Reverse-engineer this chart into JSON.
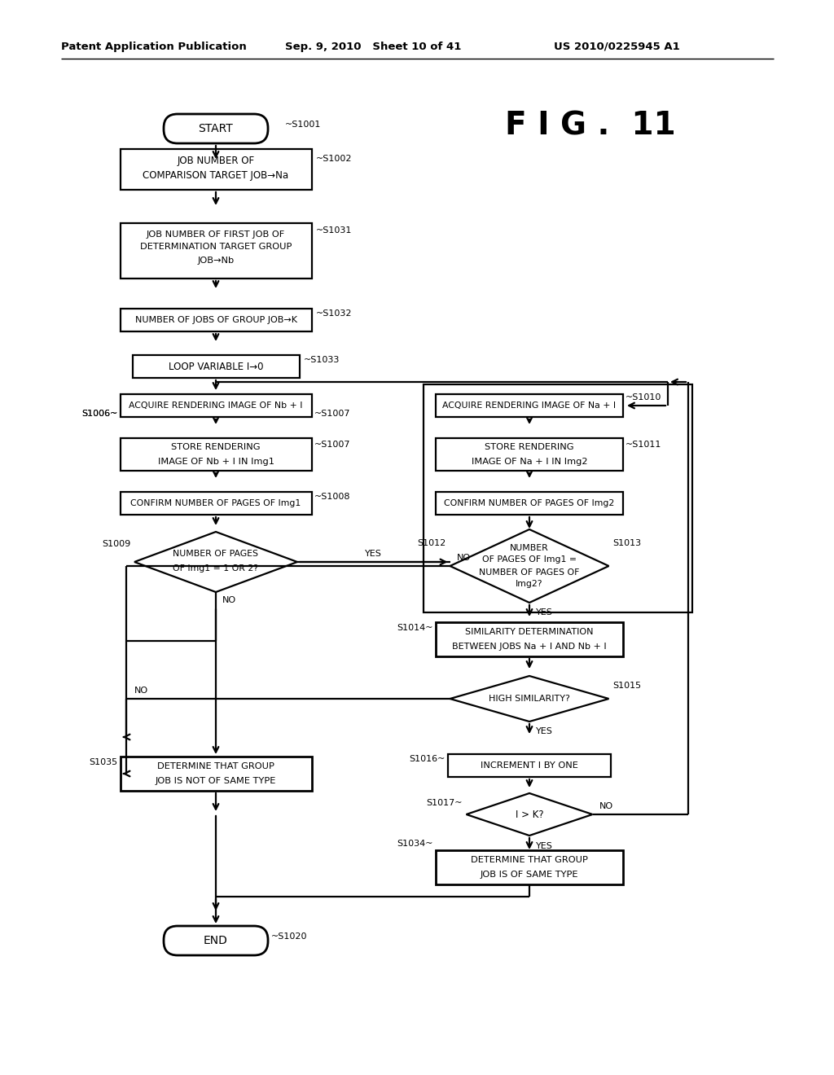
{
  "header_left": "Patent Application Publication",
  "header_mid": "Sep. 9, 2010   Sheet 10 of 41",
  "header_right": "US 2010/0225945 A1",
  "fig_label": "F I G .  11",
  "bg_color": "#ffffff"
}
